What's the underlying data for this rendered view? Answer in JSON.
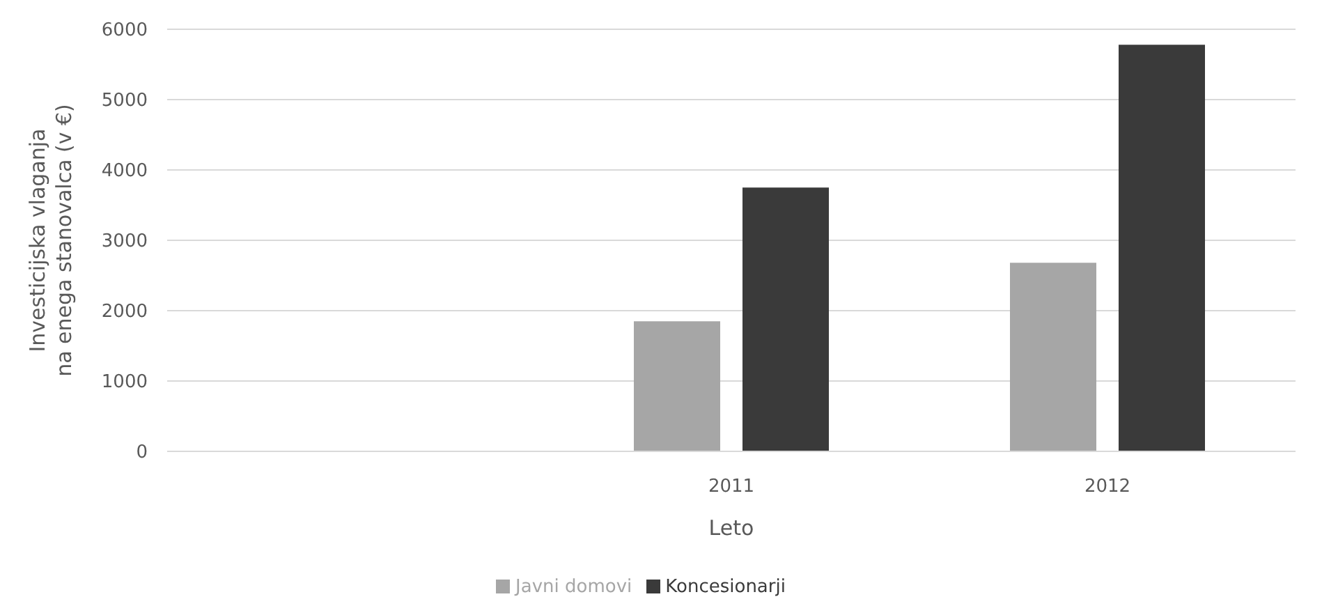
{
  "chart_data": {
    "type": "bar",
    "xlabel": "Leto",
    "ylabel": "Investicijska vlaganja\nna enega stanovalca (v €)",
    "categories": [
      null,
      "2011",
      "2012"
    ],
    "series": [
      {
        "name": "Javni domovi",
        "color": "#a6a6a6",
        "values": [
          null,
          1850,
          2680
        ]
      },
      {
        "name": "Koncesionarji",
        "color": "#3a3a3a",
        "values": [
          null,
          3750,
          5780
        ]
      }
    ],
    "ylim": [
      0,
      6000
    ],
    "yticks": [
      0,
      1000,
      2000,
      3000,
      4000,
      5000,
      6000
    ],
    "grid": "y",
    "legend": "bottom"
  }
}
